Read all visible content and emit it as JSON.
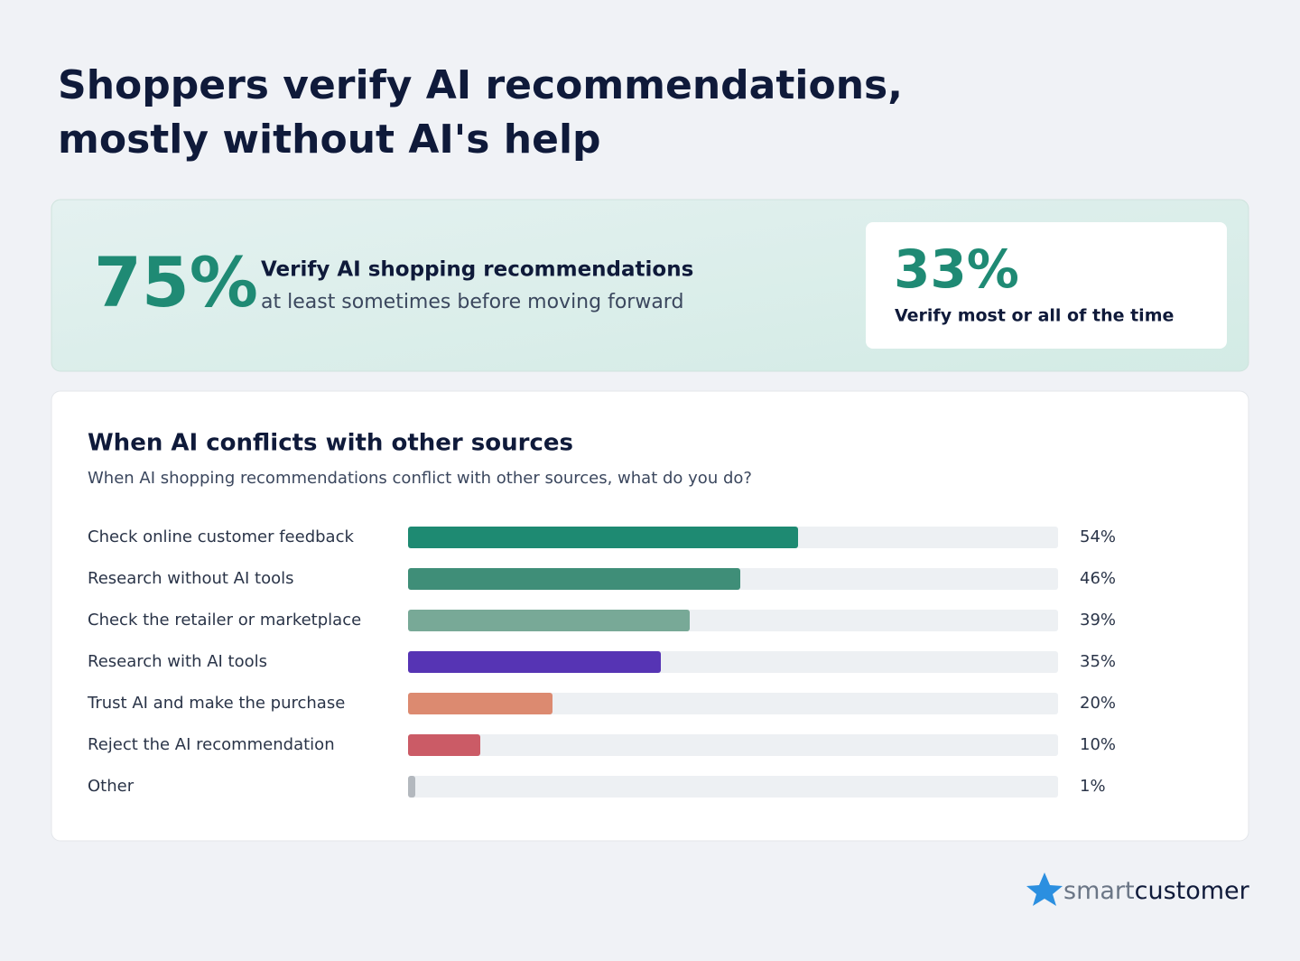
{
  "title": [
    "Shoppers verify AI recommendations,",
    "mostly without AI's help"
  ],
  "highlight": {
    "big_stat": "75%",
    "big_label": "Verify AI shopping recommendations",
    "big_sub": "at least sometimes before moving forward",
    "side_stat": "33%",
    "side_label": "Verify most or all of the time"
  },
  "chart_data": {
    "type": "hbar",
    "title": "When AI conflicts with other sources",
    "subtitle": "When AI shopping recommendations conflict with other sources, what do you do?",
    "categories": [
      "Check online customer feedback",
      "Research without AI tools",
      "Check the retailer or marketplace",
      "Research with AI tools",
      "Trust AI and make the purchase",
      "Reject the AI recommendation",
      "Other"
    ],
    "values": [
      54,
      46,
      39,
      35,
      20,
      10,
      1
    ],
    "value_labels": [
      "54%",
      "46%",
      "39%",
      "35%",
      "20%",
      "10%",
      "1%"
    ],
    "colors": [
      "#1e8a72",
      "#3f8e78",
      "#78a997",
      "#5634b4",
      "#dc8a70",
      "#cb5b66",
      "#b3b8be"
    ],
    "xlim": [
      0,
      90
    ]
  },
  "logo": [
    "smart",
    "customer"
  ]
}
